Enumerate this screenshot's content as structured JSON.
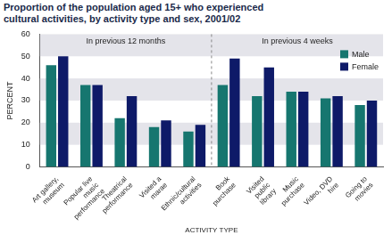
{
  "chart_data": {
    "type": "bar",
    "title": "Proportion of the population aged 15+ who experienced cultural activities, by activity type and sex, 2001/02",
    "x_label": "ACTIVITY TYPE",
    "y_label": "PERCENT",
    "annotations": [
      "In previous 12 months",
      "In previous 4 weeks"
    ],
    "categories": [
      "Art gallery, museum",
      "Popular live music performance",
      "Theatrical performance",
      "Visited a marae",
      "Ethnic/cultural activities",
      "Book purchase",
      "Visited public library",
      "Music purchase",
      "Video, DVD hire",
      "Going to movies"
    ],
    "series": [
      {
        "name": "Male",
        "color": "#16766f",
        "values": [
          46,
          37,
          22,
          18,
          16,
          37,
          32,
          34,
          31,
          28
        ]
      },
      {
        "name": "Female",
        "color": "#0e1a68",
        "values": [
          50,
          37,
          32,
          21,
          19,
          49,
          45,
          34,
          32,
          30
        ]
      }
    ],
    "ylim": [
      0,
      60
    ],
    "yticks": [
      0,
      10,
      20,
      30,
      40,
      50,
      60
    ],
    "grid": true,
    "legend": "upper right"
  }
}
